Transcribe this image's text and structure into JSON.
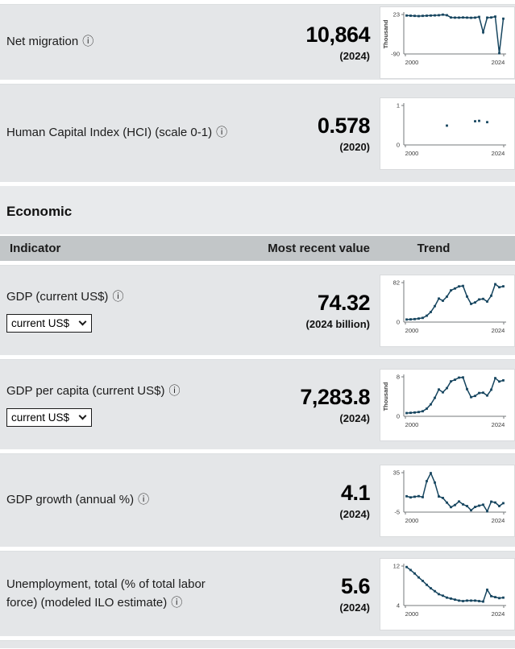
{
  "colors": {
    "row_bg": "#e4e6e8",
    "section_bg": "#e8eaec",
    "header_bg": "#c2c6c8",
    "card_bg": "#ffffff",
    "card_border": "#d9dbdd",
    "accent": "#16455f",
    "axis": "#75787b"
  },
  "icons": {
    "info": "ⓘ",
    "chevron": "chevron-down"
  },
  "section": {
    "title": "Economic"
  },
  "table_header": {
    "indicator": "Indicator",
    "most_recent_value": "Most recent value",
    "trend": "Trend"
  },
  "rows": [
    {
      "label": "Net migration",
      "value": "10,864",
      "note": "(2024)"
    },
    {
      "label": "Human Capital Index (HCI) (scale 0-1)",
      "value": "0.578",
      "note": "(2020)"
    },
    {
      "label": "GDP (current US$)",
      "dropdown": "current US$",
      "value": "74.32",
      "note": "(2024 billion)"
    },
    {
      "label": "GDP per capita (current US$)",
      "dropdown": "current US$",
      "value": "7,283.8",
      "note": "(2024)"
    },
    {
      "label": "GDP growth (annual %)",
      "value": "4.1",
      "note": "(2024)"
    },
    {
      "label": "Unemployment, total (% of total labor force) (modeled ILO estimate)",
      "value": "5.6",
      "note": "(2024)"
    }
  ],
  "chart_data": [
    {
      "type": "line",
      "indicator": "Net migration",
      "x": [
        2000,
        2001,
        2002,
        2003,
        2004,
        2005,
        2006,
        2007,
        2008,
        2009,
        2010,
        2011,
        2012,
        2013,
        2014,
        2015,
        2016,
        2017,
        2018,
        2019,
        2020,
        2021,
        2022,
        2023,
        2024
      ],
      "values": [
        20,
        19.5,
        19,
        18.5,
        19,
        19.5,
        20,
        20.5,
        21,
        22.5,
        21,
        14.5,
        14,
        14,
        14.5,
        14,
        13.5,
        14,
        16,
        -28,
        14,
        14.5,
        17,
        -88,
        10.9
      ],
      "xlim": [
        2000,
        2024
      ],
      "ylim": [
        -90,
        23
      ],
      "ytick_labels": [
        "-90",
        "23"
      ],
      "xtick_labels": [
        "2000",
        "2024"
      ],
      "ylabel": "Thousand",
      "grid": false,
      "legend": "none"
    },
    {
      "type": "scatter",
      "indicator": "Human Capital Index (HCI) (scale 0-1)",
      "x": [
        2010,
        2017,
        2018,
        2020
      ],
      "values": [
        0.49,
        0.6,
        0.61,
        0.578
      ],
      "xlim": [
        2000,
        2024
      ],
      "ylim": [
        0,
        1
      ],
      "ytick_labels": [
        "0",
        "1"
      ],
      "xtick_labels": [
        "2000",
        "2024"
      ],
      "ylabel": "",
      "grid": false,
      "legend": "none"
    },
    {
      "type": "line",
      "indicator": "GDP (current US$, billions)",
      "x": [
        2000,
        2001,
        2002,
        2003,
        2004,
        2005,
        2006,
        2007,
        2008,
        2009,
        2010,
        2011,
        2012,
        2013,
        2014,
        2015,
        2016,
        2017,
        2018,
        2019,
        2020,
        2021,
        2022,
        2023,
        2024
      ],
      "values": [
        5.3,
        5.7,
        6.2,
        7.3,
        8.7,
        13.2,
        21.0,
        33.1,
        48.9,
        44.3,
        52.9,
        66.0,
        69.7,
        74.2,
        75.2,
        53.1,
        37.9,
        40.9,
        47.1,
        48.2,
        42.7,
        54.8,
        78.8,
        72.4,
        74.3
      ],
      "xlim": [
        2000,
        2024
      ],
      "ylim": [
        0,
        82
      ],
      "ytick_labels": [
        "0",
        "82"
      ],
      "xtick_labels": [
        "2000",
        "2024"
      ],
      "ylabel": "",
      "grid": false,
      "legend": "none"
    },
    {
      "type": "line",
      "indicator": "GDP per capita (current US$, thousands)",
      "x": [
        2000,
        2001,
        2002,
        2003,
        2004,
        2005,
        2006,
        2007,
        2008,
        2009,
        2010,
        2011,
        2012,
        2013,
        2014,
        2015,
        2016,
        2017,
        2018,
        2019,
        2020,
        2021,
        2022,
        2023,
        2024
      ],
      "values": [
        0.66,
        0.7,
        0.76,
        0.87,
        1.03,
        1.55,
        2.42,
        3.74,
        5.44,
        4.86,
        5.72,
        7.08,
        7.42,
        7.84,
        7.89,
        5.5,
        3.88,
        4.13,
        4.72,
        4.79,
        4.22,
        5.39,
        7.74,
        7.05,
        7.28
      ],
      "xlim": [
        2000,
        2024
      ],
      "ylim": [
        0,
        8
      ],
      "ytick_labels": [
        "0",
        "8"
      ],
      "xtick_labels": [
        "2000",
        "2024"
      ],
      "ylabel": "Thousand",
      "grid": false,
      "legend": "none"
    },
    {
      "type": "line",
      "indicator": "GDP growth (annual %)",
      "x": [
        2000,
        2001,
        2002,
        2003,
        2004,
        2005,
        2006,
        2007,
        2008,
        2009,
        2010,
        2011,
        2012,
        2013,
        2014,
        2015,
        2016,
        2017,
        2018,
        2019,
        2020,
        2021,
        2022,
        2023,
        2024
      ],
      "values": [
        11.1,
        9.9,
        10.6,
        11.2,
        10.2,
        26.4,
        34.5,
        25.0,
        10.8,
        9.4,
        4.6,
        0.1,
        2.2,
        5.8,
        2.8,
        1.1,
        -3.1,
        0.2,
        1.5,
        2.5,
        -4.2,
        5.6,
        4.7,
        1.1,
        4.1
      ],
      "xlim": [
        2000,
        2024
      ],
      "ylim": [
        -5,
        35
      ],
      "ytick_labels": [
        "-5",
        "35"
      ],
      "xtick_labels": [
        "2000",
        "2024"
      ],
      "ylabel": "",
      "grid": false,
      "legend": "none"
    },
    {
      "type": "line",
      "indicator": "Unemployment, total (% of total labor force) (modeled ILO estimate)",
      "x": [
        2000,
        2001,
        2002,
        2003,
        2004,
        2005,
        2006,
        2007,
        2008,
        2009,
        2010,
        2011,
        2012,
        2013,
        2014,
        2015,
        2016,
        2017,
        2018,
        2019,
        2020,
        2021,
        2022,
        2023,
        2024
      ],
      "values": [
        11.8,
        11.2,
        10.5,
        9.7,
        9.0,
        8.2,
        7.5,
        6.9,
        6.3,
        6.0,
        5.6,
        5.4,
        5.2,
        5.0,
        4.9,
        5.0,
        5.0,
        5.0,
        4.9,
        4.8,
        7.2,
        5.9,
        5.7,
        5.5,
        5.6
      ],
      "xlim": [
        2000,
        2024
      ],
      "ylim": [
        4,
        12
      ],
      "ytick_labels": [
        "4",
        "12"
      ],
      "xtick_labels": [
        "2000",
        "2024"
      ],
      "ylabel": "",
      "grid": false,
      "legend": "none"
    }
  ]
}
